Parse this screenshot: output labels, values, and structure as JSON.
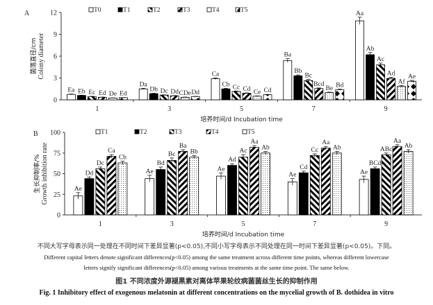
{
  "chart_data": [
    {
      "type": "bar",
      "panel": "A",
      "ylabel_cn": "菌落直径/cm",
      "ylabel": "Colony diameter",
      "xlabel": "培养时间/d  Incubation time",
      "ylim": [
        0,
        12
      ],
      "yticks": [
        0,
        3,
        6,
        9,
        12
      ],
      "categories": [
        "1",
        "3",
        "5",
        "7",
        "9"
      ],
      "series": [
        {
          "name": "T0",
          "values": [
            0.75,
            1.5,
            2.9,
            5.4,
            10.85
          ],
          "errors": [
            0.05,
            0.08,
            0.12,
            0.25,
            0.5
          ],
          "letters": [
            "Ea",
            "Da",
            "Ca",
            "Ba",
            "Aa"
          ]
        },
        {
          "name": "T1",
          "values": [
            0.6,
            0.85,
            1.5,
            3.3,
            6.2
          ],
          "errors": [
            0.04,
            0.05,
            0.08,
            0.12,
            0.3
          ],
          "letters": [
            "Eb",
            "Db",
            "Cb",
            "Bb",
            "Ab"
          ]
        },
        {
          "name": "T2",
          "values": [
            0.45,
            0.65,
            1.15,
            2.65,
            4.8
          ],
          "errors": [
            0.03,
            0.04,
            0.06,
            0.15,
            0.25
          ],
          "letters": [
            "Ec",
            "Dc",
            "Cc",
            "Bc",
            "Ac"
          ]
        },
        {
          "name": "T3",
          "values": [
            0.35,
            0.55,
            0.9,
            1.55,
            2.95
          ],
          "errors": [
            0.03,
            0.04,
            0.05,
            0.08,
            0.15
          ],
          "letters": [
            "Ed",
            "Dd",
            "Cd",
            "Bcd",
            "Ad"
          ]
        },
        {
          "name": "T4",
          "values": [
            0.25,
            0.35,
            0.5,
            1.0,
            1.85
          ],
          "errors": [
            0.02,
            0.03,
            0.04,
            0.06,
            0.1
          ],
          "letters": [
            "De",
            "CDe",
            "Ce",
            "Be",
            "Af"
          ]
        },
        {
          "name": "T5",
          "values": [
            0.3,
            0.45,
            0.7,
            1.4,
            2.55
          ],
          "errors": [
            0.02,
            0.03,
            0.04,
            0.07,
            0.12
          ],
          "letters": [
            "Ed",
            "Dd",
            "Cd",
            "Bd",
            "Ae"
          ]
        }
      ]
    },
    {
      "type": "bar",
      "panel": "B",
      "ylabel_cn": "生长抑制率/%",
      "ylabel": "Growth inhibition rate",
      "xlabel": "培养时间/d Incubation time",
      "ylim": [
        0,
        100
      ],
      "yticks": [
        0,
        25,
        50,
        75,
        100
      ],
      "categories": [
        "1",
        "3",
        "5",
        "7",
        "9"
      ],
      "series": [
        {
          "name": "T1",
          "values": [
            23,
            44,
            47,
            40,
            43
          ],
          "errors": [
            4,
            4,
            4,
            4,
            4
          ],
          "letters": [
            "Ae",
            "Ae",
            "Ae",
            "Ae",
            "Ae"
          ]
        },
        {
          "name": "T2",
          "values": [
            44,
            55,
            60,
            51,
            56
          ],
          "errors": [
            2,
            3,
            2,
            2,
            2
          ],
          "letters": [
            "Dd",
            "Bd",
            "Ad",
            "Cd",
            "BCd"
          ]
        },
        {
          "name": "T3",
          "values": [
            56,
            66,
            70,
            72,
            73
          ],
          "errors": [
            2,
            3,
            3,
            2,
            2
          ],
          "letters": [
            "Dc",
            "Bc",
            "Ac",
            "Cc",
            "ABc"
          ]
        },
        {
          "name": "T4",
          "values": [
            71,
            77,
            82,
            81,
            83
          ],
          "errors": [
            2,
            2,
            2,
            2,
            2
          ],
          "letters": [
            "Ca",
            "Ba",
            "Aa",
            "Aa",
            "Aa"
          ]
        },
        {
          "name": "T5",
          "values": [
            63,
            70,
            75,
            75,
            77
          ],
          "errors": [
            2,
            2,
            2,
            2,
            2
          ],
          "letters": [
            "Cb",
            "Bb",
            "Ab",
            "Ab",
            "Ab"
          ]
        }
      ]
    }
  ],
  "caption": {
    "note_cn": "不同大写字母表示同一处理在不同时间下差异显著(p<0.05),不同小写字母表示不同处理在同一时间下差异显著(p<0.05)。下同。",
    "note_en_1": "Different capital letters denote significant differences(p<0.05) among the same treatment across different time points, whereas different lowercase",
    "note_en_2": "letters signify significant differences(p<0.05) among various treatments at the same time point. The same below.",
    "title_cn": "图1   不同浓度外源褪黑素对离体苹果轮纹病菌菌丝生长的抑制作用",
    "title_en": "Fig. 1    Inhibitory effect of exogenous melatonin at different concentrations on the mycelial growth of B. dothidea in vitro"
  }
}
